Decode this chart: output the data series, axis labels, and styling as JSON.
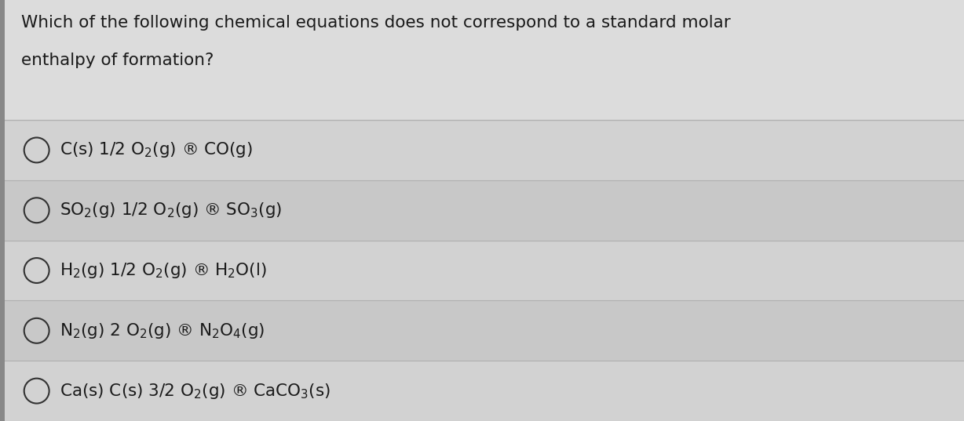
{
  "title_line1": "Which of the following chemical equations does not correspond to a standard molar",
  "title_line2": "enthalpy of formation?",
  "background_color": "#c8c8c8",
  "header_bg_color": "#dcdcdc",
  "row_bg_even": "#d2d2d2",
  "row_bg_odd": "#c8c8c8",
  "text_color": "#1a1a1a",
  "circle_color": "#333333",
  "line_color": "#b0b0b0",
  "left_bar_color": "#888888",
  "font_size_title": 15.5,
  "font_size_option": 15.5,
  "fig_width": 12.28,
  "fig_height": 5.37,
  "option_texts_latex": [
    "C(s) 1/2 O$_2$(g) ® CO(g)",
    "SO$_2$(g) 1/2 O$_2$(g) ® SO$_3$(g)",
    "H$_2$(g) 1/2 O$_2$(g) ® H$_2$O(l)",
    "N$_2$(g) 2 O$_2$(g) ® N$_2$O$_4$(g)",
    "Ca(s) C(s) 3/2 O$_2$(g) ® CaCO$_3$(s)"
  ]
}
